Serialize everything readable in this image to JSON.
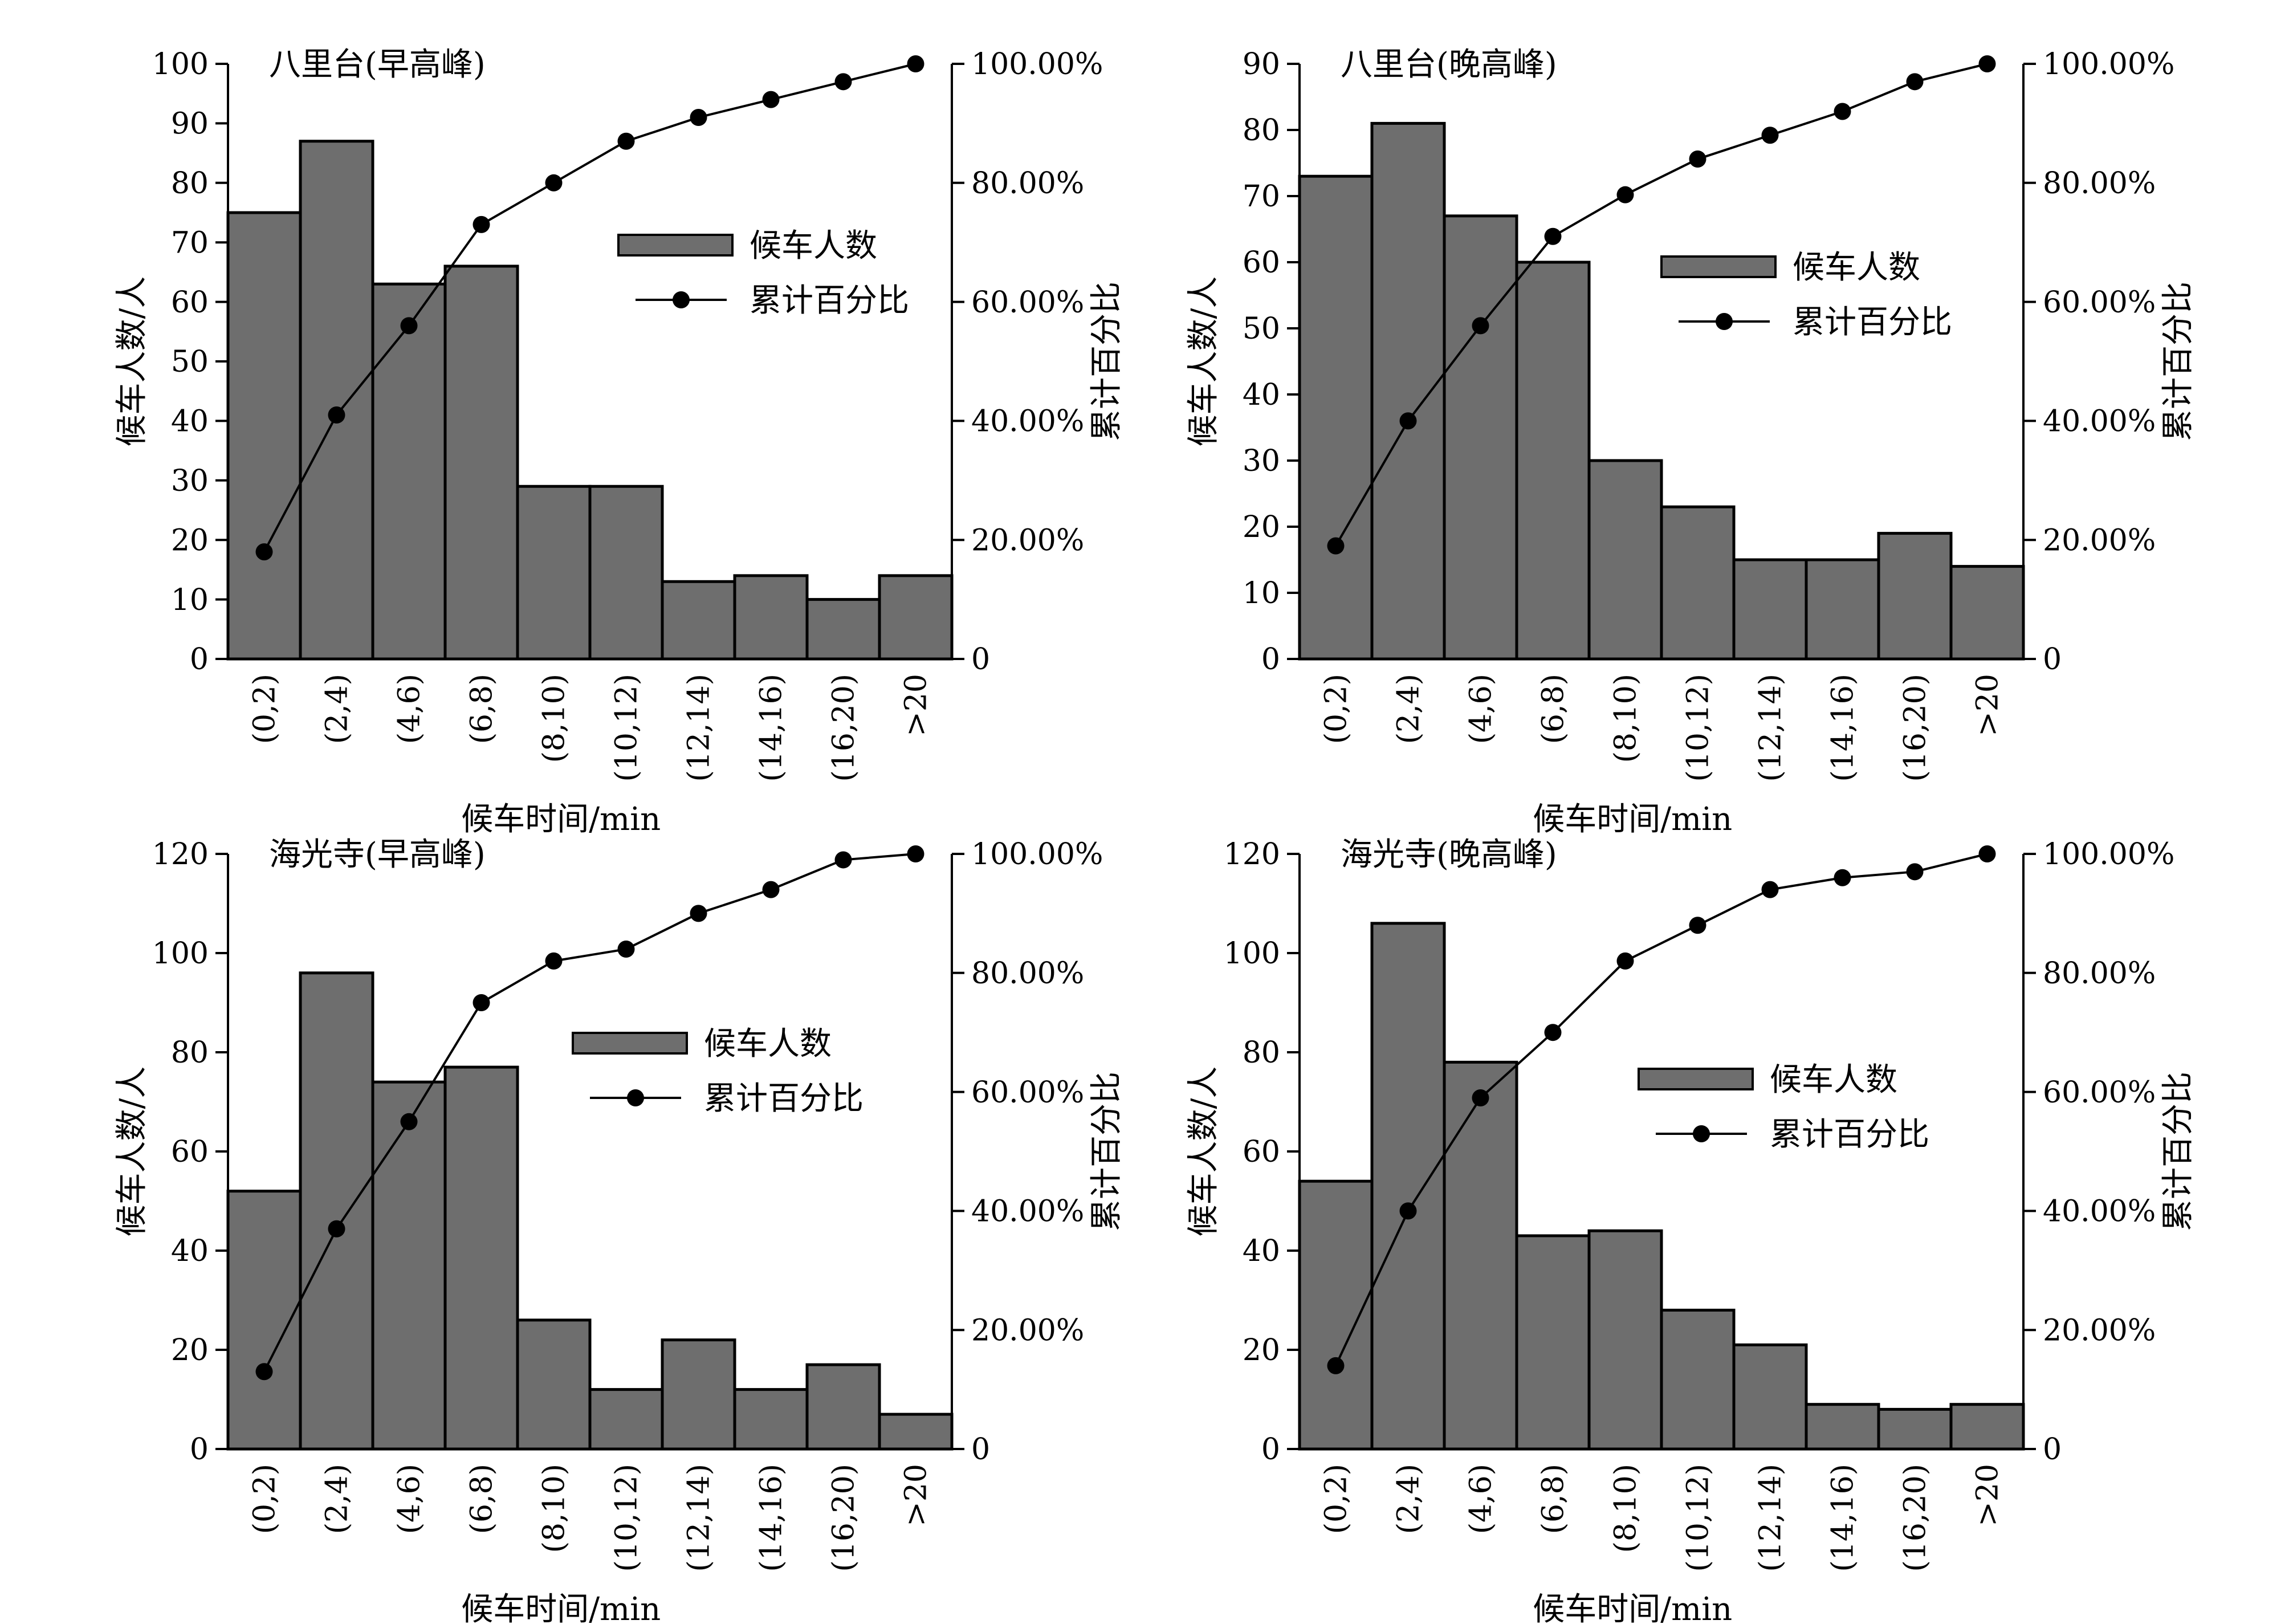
{
  "colors": {
    "bar": "#6e6e6e",
    "bar_edge": "#000000",
    "line": "#000000",
    "axis": "#000000"
  },
  "chart_data": [
    {
      "type": "bar",
      "title": "八里台(早高峰)",
      "xlabel": "候车时间/min",
      "ylabel": "候车人数/人",
      "y2label": "累计百分比",
      "categories": [
        "(0,2)",
        "(2,4)",
        "(4,6)",
        "(6,8)",
        "(8,10)",
        "(10,12)",
        "(12,14)",
        "(14,16)",
        "(16,20)",
        ">20"
      ],
      "ylim": [
        0,
        100
      ],
      "yticks": [
        "0",
        "10",
        "20",
        "30",
        "40",
        "50",
        "60",
        "70",
        "80",
        "90",
        "100"
      ],
      "y2ticks": [
        "0",
        "20.00%",
        "40.00%",
        "60.00%",
        "80.00%",
        "100.00%"
      ],
      "legend": [
        "候车人数",
        "累计百分比"
      ],
      "legend_position": "upper-right",
      "series": [
        {
          "name": "候车人数",
          "values": [
            75,
            87,
            63,
            66,
            29,
            29,
            13,
            14,
            10,
            14
          ]
        },
        {
          "name": "累计百分比",
          "values": [
            18,
            41,
            56,
            73,
            80,
            87,
            91,
            94,
            97,
            100
          ]
        }
      ]
    },
    {
      "type": "bar",
      "title": "八里台(晚高峰)",
      "xlabel": "候车时间/min",
      "ylabel": "候车人数/人",
      "y2label": "累计百分比",
      "categories": [
        "(0,2)",
        "(2,4)",
        "(4,6)",
        "(6,8)",
        "(8,10)",
        "(10,12)",
        "(12,14)",
        "(14,16)",
        "(16,20)",
        ">20"
      ],
      "ylim": [
        0,
        90
      ],
      "yticks": [
        "0",
        "10",
        "20",
        "30",
        "40",
        "50",
        "60",
        "70",
        "80",
        "90"
      ],
      "y2ticks": [
        "0",
        "20.00%",
        "40.00%",
        "60.00%",
        "80.00%",
        "100.00%"
      ],
      "legend": [
        "候车人数",
        "累计百分比"
      ],
      "legend_position": "center-right",
      "series": [
        {
          "name": "候车人数",
          "values": [
            73,
            81,
            67,
            60,
            30,
            23,
            15,
            15,
            19,
            14
          ]
        },
        {
          "name": "累计百分比",
          "values": [
            19,
            40,
            56,
            71,
            78,
            84,
            88,
            92,
            97,
            100
          ]
        }
      ]
    },
    {
      "type": "bar",
      "title": "海光寺(早高峰)",
      "xlabel": "候车时间/min",
      "ylabel": "候车人数/人",
      "y2label": "累计百分比",
      "categories": [
        "(0,2)",
        "(2,4)",
        "(4,6)",
        "(6,8)",
        "(8,10)",
        "(10,12)",
        "(12,14)",
        "(14,16)",
        "(16,20)",
        ">20"
      ],
      "ylim": [
        0,
        120
      ],
      "yticks": [
        "0",
        "20",
        "40",
        "60",
        "80",
        "100",
        "120"
      ],
      "y2ticks": [
        "0",
        "20.00%",
        "40.00%",
        "60.00%",
        "80.00%",
        "100.00%"
      ],
      "legend": [
        "候车人数",
        "累计百分比"
      ],
      "legend_position": "upper-right",
      "series": [
        {
          "name": "候车人数",
          "values": [
            52,
            96,
            74,
            77,
            26,
            12,
            22,
            12,
            17,
            7
          ]
        },
        {
          "name": "累计百分比",
          "values": [
            13,
            37,
            55,
            75,
            82,
            84,
            90,
            94,
            99,
            100
          ]
        }
      ]
    },
    {
      "type": "bar",
      "title": "海光寺(晚高峰)",
      "xlabel": "候车时间/min",
      "ylabel": "候车人数/人",
      "y2label": "累计百分比",
      "categories": [
        "(0,2)",
        "(2,4)",
        "(4,6)",
        "(6,8)",
        "(8,10)",
        "(10,12)",
        "(12,14)",
        "(14,16)",
        "(16,20)",
        ">20"
      ],
      "ylim": [
        0,
        120
      ],
      "yticks": [
        "0",
        "20",
        "40",
        "60",
        "80",
        "100",
        "120"
      ],
      "y2ticks": [
        "0",
        "20.00%",
        "40.00%",
        "60.00%",
        "80.00%",
        "100.00%"
      ],
      "legend": [
        "候车人数",
        "累计百分比"
      ],
      "legend_position": "center-right",
      "series": [
        {
          "name": "候车人数",
          "values": [
            54,
            106,
            78,
            43,
            44,
            28,
            21,
            9,
            8,
            9
          ]
        },
        {
          "name": "累计百分比",
          "values": [
            14,
            40,
            59,
            70,
            82,
            88,
            94,
            96,
            97,
            100
          ]
        }
      ]
    }
  ]
}
